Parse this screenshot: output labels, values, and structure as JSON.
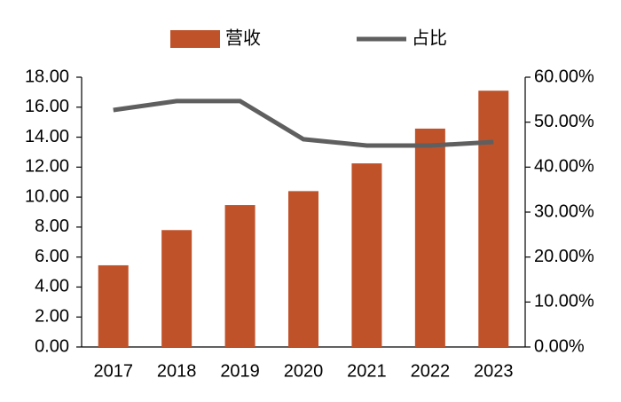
{
  "chart_data": {
    "type": "bar",
    "categories": [
      "2017",
      "2018",
      "2019",
      "2020",
      "2021",
      "2022",
      "2023"
    ],
    "series": [
      {
        "name": "营收",
        "type": "bar",
        "color": "#c0522a",
        "values": [
          5.45,
          7.8,
          9.47,
          10.4,
          12.25,
          14.57,
          17.1
        ]
      },
      {
        "name": "占比",
        "type": "line",
        "axis": "y2",
        "color": "#5f5f5f",
        "values": [
          52.7,
          54.7,
          54.7,
          46.2,
          44.8,
          44.8,
          45.6
        ]
      }
    ],
    "ylim": [
      0,
      18
    ],
    "yticks": [
      {
        "value": 0,
        "label": "0.00"
      },
      {
        "value": 2,
        "label": "2.00"
      },
      {
        "value": 4,
        "label": "4.00"
      },
      {
        "value": 6,
        "label": "6.00"
      },
      {
        "value": 8,
        "label": "8.00"
      },
      {
        "value": 10,
        "label": "10.00"
      },
      {
        "value": 12,
        "label": "12.00"
      },
      {
        "value": 14,
        "label": "14.00"
      },
      {
        "value": 16,
        "label": "16.00"
      },
      {
        "value": 18,
        "label": "18.00"
      }
    ],
    "y2lim": [
      0,
      60
    ],
    "y2ticks": [
      {
        "value": 0,
        "label": "0.00%"
      },
      {
        "value": 10,
        "label": "10.00%"
      },
      {
        "value": 20,
        "label": "20.00%"
      },
      {
        "value": 30,
        "label": "30.00%"
      },
      {
        "value": 40,
        "label": "40.00%"
      },
      {
        "value": 50,
        "label": "50.00%"
      },
      {
        "value": 60,
        "label": "60.00%"
      }
    ],
    "grid": false,
    "legend": "top"
  }
}
